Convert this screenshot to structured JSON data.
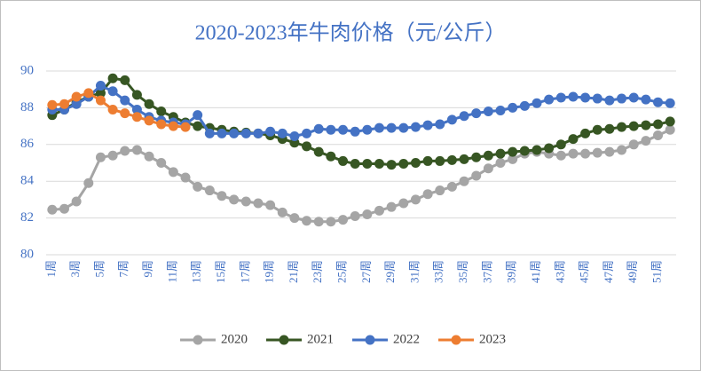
{
  "chart_data": {
    "type": "line",
    "title": "2020-2023年牛肉价格（元/公斤）",
    "categories": [
      "1周",
      null,
      "3周",
      null,
      "5周",
      null,
      "7周",
      null,
      "9周",
      null,
      "11周",
      null,
      "13周",
      null,
      "15周",
      null,
      "17周",
      null,
      "19周",
      null,
      "21周",
      null,
      "23周",
      null,
      "25周",
      null,
      "27周",
      null,
      "29周",
      null,
      "31周",
      null,
      "33周",
      null,
      "35周",
      null,
      "37周",
      null,
      "39周",
      null,
      "41周",
      null,
      "43周",
      null,
      "45周",
      null,
      "47周",
      null,
      "49周",
      null,
      "51周",
      null
    ],
    "series": [
      {
        "name": "2020",
        "color": "#a5a5a5",
        "values": [
          82.45,
          82.5,
          82.9,
          83.9,
          85.3,
          85.4,
          85.65,
          85.7,
          85.35,
          85.0,
          84.5,
          84.2,
          83.7,
          83.5,
          83.2,
          83.0,
          82.9,
          82.8,
          82.7,
          82.3,
          82.0,
          81.85,
          81.8,
          81.8,
          81.9,
          82.1,
          82.2,
          82.4,
          82.6,
          82.8,
          83.0,
          83.3,
          83.5,
          83.7,
          84.0,
          84.3,
          84.7,
          85.0,
          85.2,
          85.5,
          85.6,
          85.5,
          85.4,
          85.5,
          85.5,
          85.55,
          85.6,
          85.7,
          86.0,
          86.2,
          86.5,
          86.8
        ]
      },
      {
        "name": "2021",
        "color": "#375623",
        "values": [
          87.6,
          87.9,
          88.3,
          88.6,
          88.8,
          89.6,
          89.5,
          88.7,
          88.2,
          87.8,
          87.5,
          87.2,
          87.0,
          86.9,
          86.8,
          86.7,
          86.65,
          86.6,
          86.5,
          86.3,
          86.1,
          85.9,
          85.6,
          85.35,
          85.1,
          84.95,
          84.95,
          84.95,
          84.9,
          84.95,
          85.0,
          85.1,
          85.1,
          85.15,
          85.2,
          85.3,
          85.4,
          85.5,
          85.6,
          85.65,
          85.7,
          85.8,
          86.0,
          86.3,
          86.6,
          86.8,
          86.85,
          86.95,
          87.0,
          87.05,
          87.1,
          87.25
        ]
      },
      {
        "name": "2022",
        "color": "#4472c4",
        "values": [
          87.9,
          87.9,
          88.2,
          88.6,
          89.2,
          88.9,
          88.4,
          87.9,
          87.5,
          87.3,
          87.2,
          87.1,
          87.6,
          86.6,
          86.6,
          86.6,
          86.6,
          86.6,
          86.7,
          86.6,
          86.45,
          86.6,
          86.85,
          86.8,
          86.8,
          86.7,
          86.8,
          86.9,
          86.9,
          86.9,
          86.95,
          87.05,
          87.1,
          87.35,
          87.55,
          87.7,
          87.8,
          87.85,
          88.0,
          88.1,
          88.25,
          88.45,
          88.55,
          88.6,
          88.55,
          88.5,
          88.4,
          88.5,
          88.55,
          88.45,
          88.3,
          88.25
        ]
      },
      {
        "name": "2023",
        "color": "#ed7d31",
        "values": [
          88.15,
          88.2,
          88.6,
          88.8,
          88.4,
          87.9,
          87.7,
          87.5,
          87.3,
          87.1,
          87.0,
          86.95,
          null,
          null,
          null,
          null,
          null,
          null,
          null,
          null,
          null,
          null,
          null,
          null,
          null,
          null,
          null,
          null,
          null,
          null,
          null,
          null,
          null,
          null,
          null,
          null,
          null,
          null,
          null,
          null,
          null,
          null,
          null,
          null,
          null,
          null,
          null,
          null,
          null,
          null,
          null,
          null
        ]
      }
    ],
    "ylim": [
      80,
      90
    ],
    "yticks": [
      80,
      82,
      84,
      86,
      88,
      90
    ],
    "grid": true,
    "legend": "bottom"
  }
}
